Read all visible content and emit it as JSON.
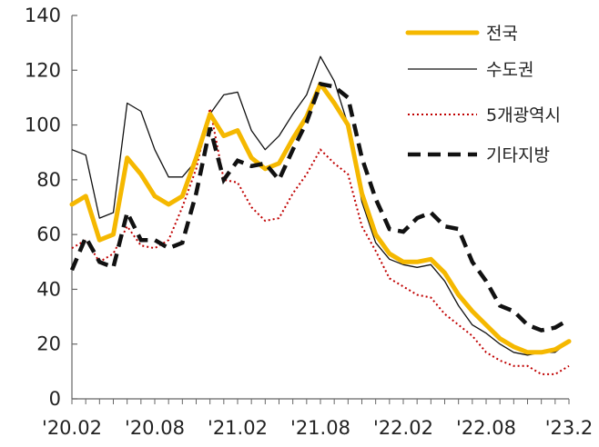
{
  "chart_data": {
    "type": "line",
    "title": "",
    "xlabel": "",
    "ylabel": "",
    "ylim": [
      0,
      140
    ],
    "yticks": [
      0,
      20,
      40,
      60,
      80,
      100,
      120,
      140
    ],
    "grid": false,
    "legend_position": "top-right",
    "x": [
      "'20.02",
      "'20.03",
      "'20.04",
      "'20.05",
      "'20.06",
      "'20.07",
      "'20.08",
      "'20.09",
      "'20.10",
      "'20.11",
      "'20.12",
      "'21.01",
      "'21.02",
      "'21.03",
      "'21.04",
      "'21.05",
      "'21.06",
      "'21.07",
      "'21.08",
      "'21.09",
      "'21.10",
      "'21.11",
      "'21.12",
      "'22.01",
      "'22.02",
      "'22.03",
      "'22.04",
      "'22.05",
      "'22.06",
      "'22.07",
      "'22.08",
      "'22.09",
      "'22.10",
      "'22.11",
      "'22.12",
      "'23.01",
      "'23.02"
    ],
    "xtick_labels": [
      "'20.02",
      "'20.08",
      "'21.02",
      "'21.08",
      "'22.02",
      "'22.08",
      "'23.2"
    ],
    "xtick_index": [
      0,
      6,
      12,
      18,
      24,
      30,
      36
    ],
    "series": [
      {
        "name": "전국",
        "color": "#F5B800",
        "style": "solid-thick",
        "values": [
          71,
          74,
          58,
          60,
          88,
          82,
          74,
          71,
          74,
          88,
          104,
          96,
          98,
          88,
          84,
          86,
          95,
          103,
          115,
          108,
          100,
          75,
          60,
          53,
          50,
          50,
          51,
          46,
          38,
          32,
          27,
          22,
          19,
          17,
          17,
          18,
          21
        ]
      },
      {
        "name": "수도권",
        "color": "#111111",
        "style": "solid-thin",
        "values": [
          91,
          89,
          66,
          68,
          108,
          105,
          91,
          81,
          81,
          87,
          104,
          111,
          112,
          98,
          91,
          96,
          104,
          111,
          125,
          116,
          100,
          72,
          57,
          51,
          49,
          48,
          49,
          43,
          34,
          27,
          24,
          20,
          17,
          16,
          17,
          17,
          21
        ]
      },
      {
        "name": "5개광역시",
        "color": "#C00000",
        "style": "dotted",
        "values": [
          55,
          58,
          50,
          53,
          63,
          56,
          55,
          58,
          70,
          84,
          106,
          80,
          79,
          70,
          65,
          66,
          75,
          82,
          91,
          86,
          82,
          63,
          54,
          44,
          41,
          38,
          37,
          31,
          27,
          23,
          17,
          14,
          12,
          12,
          9,
          9,
          12
        ]
      },
      {
        "name": "기타지방",
        "color": "#111111",
        "style": "dashed",
        "values": [
          47,
          59,
          50,
          48,
          68,
          58,
          58,
          55,
          57,
          75,
          99,
          80,
          87,
          85,
          86,
          80,
          91,
          101,
          115,
          114,
          110,
          88,
          73,
          62,
          61,
          66,
          68,
          63,
          62,
          50,
          43,
          34,
          32,
          27,
          25,
          26,
          29
        ]
      }
    ]
  }
}
